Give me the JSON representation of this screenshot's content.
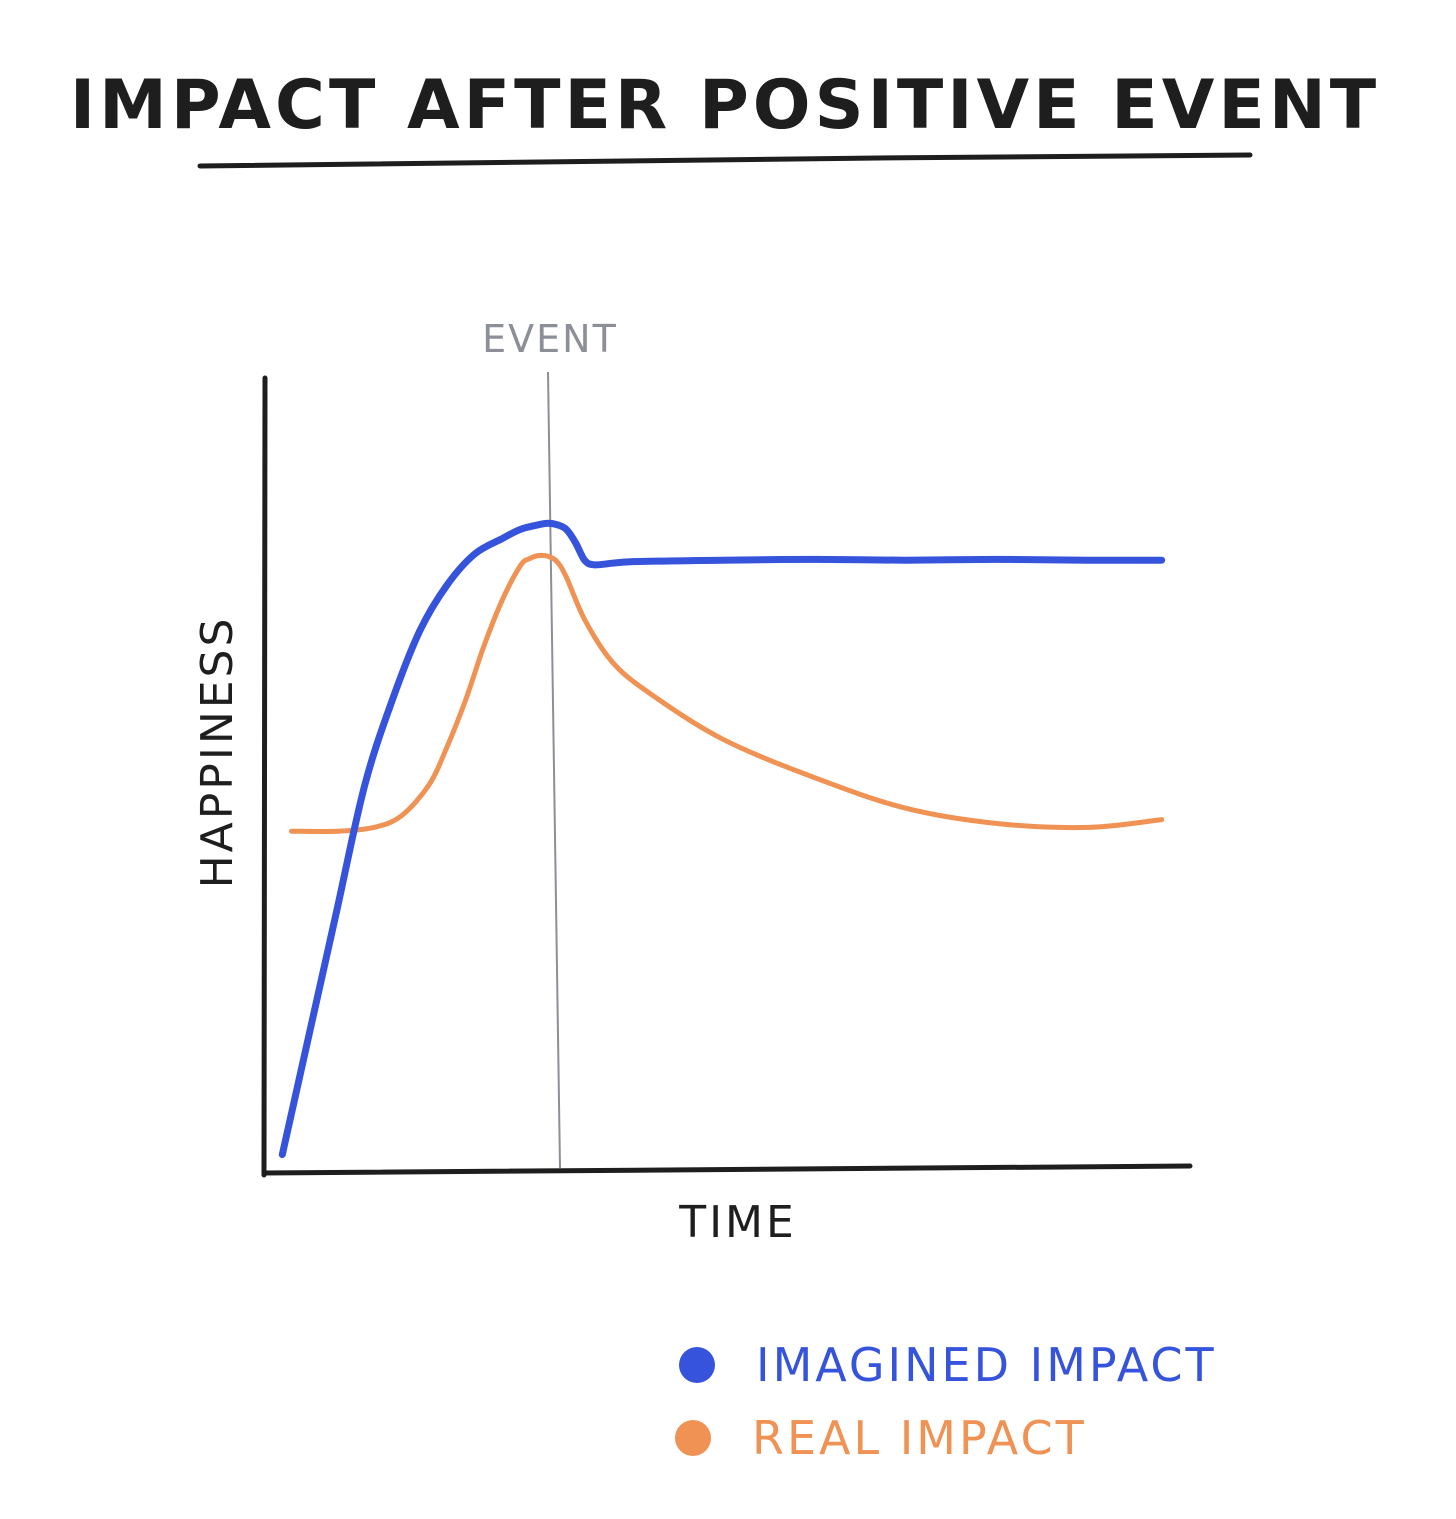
{
  "chart_data": {
    "type": "line",
    "title": "IMPACT AFTER POSITIVE EVENT",
    "xlabel": "TIME",
    "ylabel": "HAPPINESS",
    "xlim": [
      0,
      100
    ],
    "ylim": [
      0,
      100
    ],
    "grid": false,
    "legend_position": "bottom-right",
    "annotations": [
      {
        "text": "EVENT",
        "x": 31
      }
    ],
    "series": [
      {
        "name": "IMAGINED IMPACT",
        "color": "#3653dc",
        "x": [
          2,
          5,
          8,
          11,
          14,
          17,
          20,
          23,
          26,
          28,
          30,
          31,
          32,
          33,
          34,
          35,
          36,
          38,
          40,
          45,
          50,
          60,
          70,
          80,
          90,
          98
        ],
        "y": [
          2,
          18,
          34,
          50,
          61,
          70,
          76,
          80,
          82,
          83.2,
          83.8,
          84,
          83.8,
          83.2,
          81.5,
          79.2,
          78.6,
          78.8,
          79,
          79.1,
          79.2,
          79.3,
          79.2,
          79.3,
          79.2,
          79.2
        ]
      },
      {
        "name": "REAL IMPACT",
        "color": "#ef9254",
        "x": [
          3,
          8,
          12,
          15,
          18,
          20,
          22,
          24,
          26,
          28,
          29,
          30,
          31,
          32,
          33,
          35,
          38,
          42,
          50,
          60,
          70,
          80,
          90,
          98
        ],
        "y": [
          44,
          44,
          44.5,
          46,
          50,
          55,
          61,
          68,
          74,
          78.5,
          79.4,
          79.8,
          79.7,
          79,
          77,
          71.5,
          66,
          62,
          56,
          51,
          47,
          45,
          44.5,
          45.5
        ]
      }
    ]
  }
}
